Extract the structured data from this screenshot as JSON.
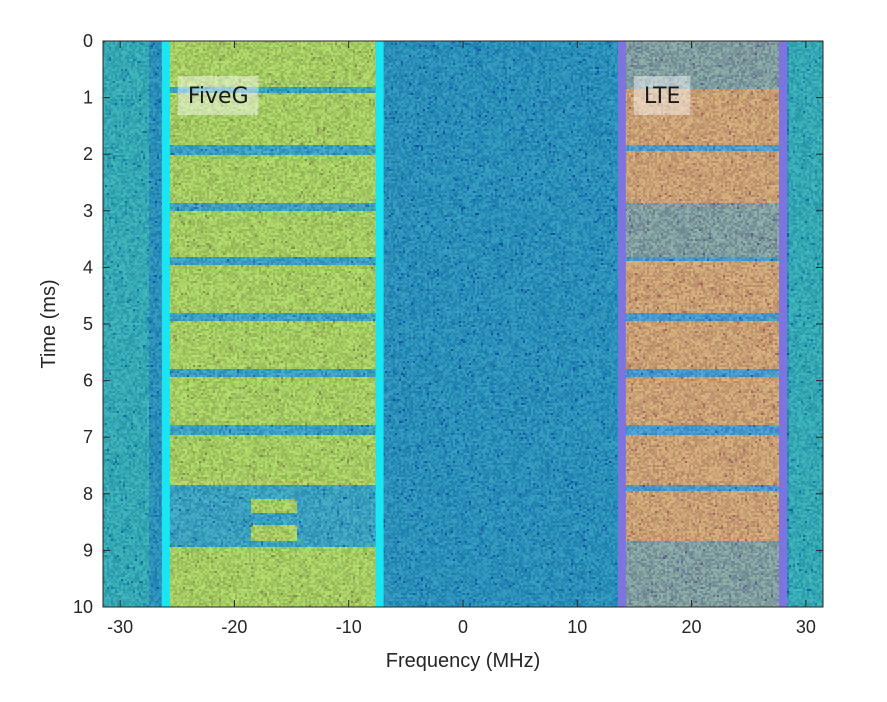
{
  "chart_data": {
    "type": "heatmap",
    "subtype": "spectrogram",
    "title": "",
    "xlabel": "Frequency (MHz)",
    "ylabel": "Time (ms)",
    "xlim": [
      -31.5,
      31.5
    ],
    "ylim": [
      0,
      10
    ],
    "y_direction": "down",
    "x_ticks": [
      -30,
      -20,
      -10,
      0,
      10,
      20,
      30
    ],
    "x_tick_labels": [
      "-30",
      "-20",
      "-10",
      "0",
      "10",
      "20",
      "30"
    ],
    "y_ticks": [
      0,
      1,
      2,
      3,
      4,
      5,
      6,
      7,
      8,
      9,
      10
    ],
    "y_tick_labels": [
      "0",
      "1",
      "2",
      "3",
      "4",
      "5",
      "6",
      "7",
      "8",
      "9",
      "10"
    ],
    "background": {
      "name": "noise floor",
      "color": "#2a8fb8"
    },
    "bands": [
      {
        "label": "FiveG",
        "freq_range": [
          -26,
          -7.3
        ],
        "outline_color": "#19e6f2",
        "fill_color": "#a4cb62",
        "gap_color": "#3aa0bd",
        "active_intervals_ms": [
          [
            0,
            0.8
          ],
          [
            0.93,
            1.85
          ],
          [
            2.0,
            2.85
          ],
          [
            3.0,
            3.8
          ],
          [
            3.95,
            4.8
          ],
          [
            4.95,
            5.8
          ],
          [
            5.95,
            6.8
          ],
          [
            6.95,
            7.85
          ],
          [
            8.95,
            10
          ]
        ],
        "extra_blocks": [
          {
            "freq_range": [
              -18.5,
              -14.5
            ],
            "time_range_ms": [
              8.1,
              8.35
            ]
          },
          {
            "freq_range": [
              -18.5,
              -14.5
            ],
            "time_range_ms": [
              8.55,
              8.85
            ]
          }
        ]
      },
      {
        "label": "LTE",
        "freq_range": [
          13.9,
          28
        ],
        "outline_color": "#7d74e0",
        "fill_color": "#c8a074",
        "gap_color": "#4a98c8",
        "active_intervals_ms": [
          [
            0.85,
            1.85
          ],
          [
            1.95,
            2.85
          ],
          [
            3.9,
            4.8
          ],
          [
            4.95,
            5.8
          ],
          [
            5.95,
            6.8
          ],
          [
            6.95,
            7.85
          ],
          [
            7.95,
            8.85
          ]
        ],
        "faint_intervals_ms": [
          [
            0.0,
            0.85
          ],
          [
            2.85,
            3.8
          ],
          [
            8.85,
            10
          ]
        ]
      }
    ]
  }
}
